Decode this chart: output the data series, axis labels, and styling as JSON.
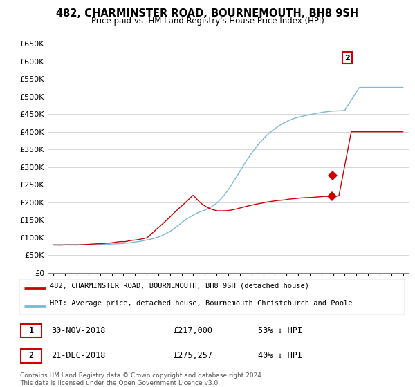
{
  "title": "482, CHARMINSTER ROAD, BOURNEMOUTH, BH8 9SH",
  "subtitle": "Price paid vs. HM Land Registry's House Price Index (HPI)",
  "ylim": [
    0,
    675000
  ],
  "yticks": [
    0,
    50000,
    100000,
    150000,
    200000,
    250000,
    300000,
    350000,
    400000,
    450000,
    500000,
    550000,
    600000,
    650000
  ],
  "ytick_labels": [
    "£0",
    "£50K",
    "£100K",
    "£150K",
    "£200K",
    "£250K",
    "£300K",
    "£350K",
    "£400K",
    "£450K",
    "£500K",
    "£550K",
    "£600K",
    "£650K"
  ],
  "hpi_color": "#7ab8d9",
  "price_color": "#cc0000",
  "marker_color": "#cc0000",
  "sale1_x": 2018.92,
  "sale1_y": 217000,
  "sale2_x": 2018.97,
  "sale2_y": 275257,
  "legend_line1": "482, CHARMINSTER ROAD, BOURNEMOUTH, BH8 9SH (detached house)",
  "legend_line2": "HPI: Average price, detached house, Bournemouth Christchurch and Poole",
  "table_row1": [
    "1",
    "30-NOV-2018",
    "£217,000",
    "53% ↓ HPI"
  ],
  "table_row2": [
    "2",
    "21-DEC-2018",
    "£275,257",
    "40% ↓ HPI"
  ],
  "footer": "Contains HM Land Registry data © Crown copyright and database right 2024.\nThis data is licensed under the Open Government Licence v3.0.",
  "grid_color": "#d0d0d0",
  "xlim_left": 1994.5,
  "xlim_right": 2025.5
}
